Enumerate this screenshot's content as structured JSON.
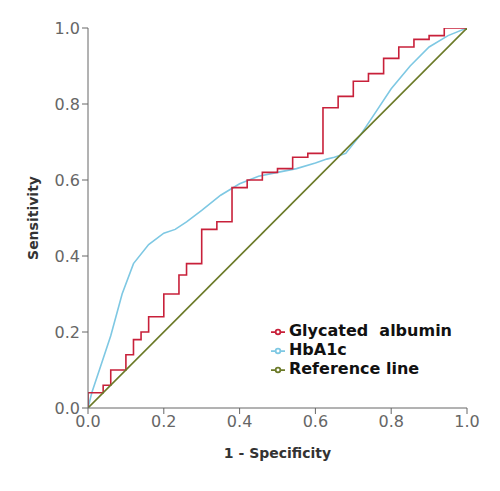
{
  "chart_data": {
    "type": "line",
    "xlabel": "1 - Specificity",
    "ylabel": "Sensitivity",
    "xlim": [
      0.0,
      1.0
    ],
    "ylim": [
      0.0,
      1.0
    ],
    "xticks": [
      {
        "value": 0.0,
        "label": "0.0"
      },
      {
        "value": 0.2,
        "label": "0.2"
      },
      {
        "value": 0.4,
        "label": "0.4"
      },
      {
        "value": 0.6,
        "label": "0.6"
      },
      {
        "value": 0.8,
        "label": "0.8"
      },
      {
        "value": 1.0,
        "label": "1.0"
      }
    ],
    "yticks": [
      {
        "value": 0.0,
        "label": "0.0"
      },
      {
        "value": 0.2,
        "label": "0.2"
      },
      {
        "value": 0.4,
        "label": "0.4"
      },
      {
        "value": 0.6,
        "label": "0.6"
      },
      {
        "value": 0.8,
        "label": "0.8"
      },
      {
        "value": 1.0,
        "label": "1.0"
      }
    ],
    "grid": false,
    "legend": "lower right",
    "series": [
      {
        "name": "HbA1c",
        "color": "#7EC8E3",
        "x": [
          0.0,
          0.01,
          0.03,
          0.06,
          0.09,
          0.12,
          0.16,
          0.2,
          0.23,
          0.26,
          0.3,
          0.35,
          0.4,
          0.45,
          0.5,
          0.55,
          0.6,
          0.63,
          0.65,
          0.68,
          0.72,
          0.76,
          0.8,
          0.85,
          0.9,
          0.95,
          1.0
        ],
        "values": [
          0.0,
          0.04,
          0.1,
          0.19,
          0.3,
          0.38,
          0.43,
          0.46,
          0.47,
          0.49,
          0.52,
          0.56,
          0.59,
          0.61,
          0.62,
          0.63,
          0.645,
          0.655,
          0.66,
          0.67,
          0.72,
          0.78,
          0.84,
          0.9,
          0.95,
          0.98,
          1.0
        ]
      },
      {
        "name": "Glycated  albumin",
        "color": "#C8203A",
        "x": [
          0.0,
          0.0,
          0.04,
          0.04,
          0.06,
          0.06,
          0.1,
          0.1,
          0.12,
          0.12,
          0.14,
          0.14,
          0.16,
          0.16,
          0.2,
          0.2,
          0.24,
          0.24,
          0.26,
          0.26,
          0.3,
          0.3,
          0.34,
          0.34,
          0.38,
          0.38,
          0.42,
          0.42,
          0.46,
          0.46,
          0.5,
          0.5,
          0.54,
          0.54,
          0.58,
          0.58,
          0.62,
          0.62,
          0.66,
          0.66,
          0.7,
          0.7,
          0.74,
          0.74,
          0.78,
          0.78,
          0.82,
          0.82,
          0.86,
          0.86,
          0.9,
          0.9,
          0.94,
          0.94,
          0.98,
          0.98,
          1.0
        ],
        "values": [
          0.0,
          0.04,
          0.04,
          0.06,
          0.06,
          0.1,
          0.1,
          0.14,
          0.14,
          0.18,
          0.18,
          0.2,
          0.2,
          0.24,
          0.24,
          0.3,
          0.3,
          0.35,
          0.35,
          0.38,
          0.38,
          0.47,
          0.47,
          0.49,
          0.49,
          0.58,
          0.58,
          0.6,
          0.6,
          0.62,
          0.62,
          0.63,
          0.63,
          0.66,
          0.66,
          0.67,
          0.67,
          0.79,
          0.79,
          0.82,
          0.82,
          0.86,
          0.86,
          0.88,
          0.88,
          0.92,
          0.92,
          0.95,
          0.95,
          0.97,
          0.97,
          0.98,
          0.98,
          1.0,
          1.0,
          1.0,
          1.0
        ]
      },
      {
        "name": "Reference line",
        "color": "#6B7A28",
        "x": [
          0,
          1
        ],
        "values": [
          0,
          1
        ]
      }
    ]
  }
}
